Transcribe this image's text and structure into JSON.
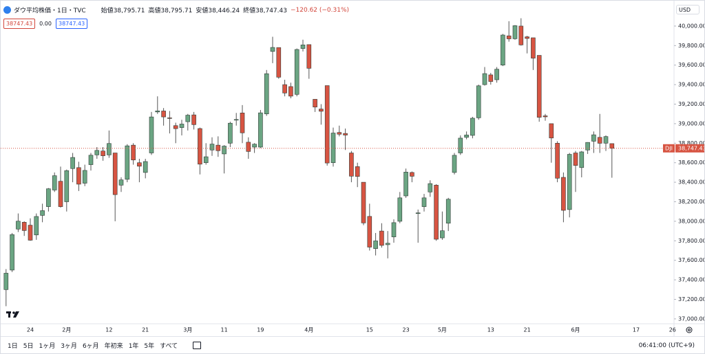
{
  "header": {
    "title": "ダウ平均株価・1日・TVC",
    "ohlc": [
      {
        "label": "始値",
        "value": "38,795.71"
      },
      {
        "label": "高値",
        "value": "38,795.71"
      },
      {
        "label": "安値",
        "value": "38,446.24"
      },
      {
        "label": "終値",
        "value": "38,747.43"
      }
    ],
    "change": "−120.62 (−0.31%)"
  },
  "boxes": [
    "38747.43",
    "0.00",
    "38747.43"
  ],
  "currency": "USD",
  "toolbar": {
    "ranges": [
      "1日",
      "5日",
      "1ヶ月",
      "3ヶ月",
      "6ヶ月",
      "年初来",
      "1年",
      "5年",
      "すべて"
    ],
    "time": "06:41:00 (UTC+9)"
  },
  "chart_data": {
    "type": "candlestick",
    "categories": [
      null,
      null,
      null,
      null,
      "24",
      null,
      null,
      null,
      null,
      null,
      "2月",
      null,
      null,
      null,
      null,
      null,
      null,
      "12",
      null,
      null,
      null,
      null,
      null,
      "21",
      null,
      null,
      null,
      null,
      null,
      null,
      "3月",
      null,
      null,
      null,
      null,
      null,
      "11",
      null,
      null,
      null,
      null,
      null,
      "19",
      null,
      null,
      null,
      null,
      null,
      null,
      null,
      "4月",
      null,
      null,
      null,
      null,
      null,
      null,
      null,
      null,
      null,
      "15",
      null,
      null,
      null,
      null,
      null,
      "23",
      null,
      null,
      null,
      null,
      null,
      "5月",
      null,
      null,
      null,
      null,
      null,
      null,
      null,
      "13",
      null,
      null,
      null,
      null,
      null,
      "21",
      null,
      null,
      null,
      null,
      null,
      null,
      null,
      "6月",
      null,
      null,
      null,
      null,
      null,
      null,
      null,
      null,
      null,
      "17",
      null,
      null,
      null,
      null,
      null,
      "26"
    ],
    "open": [
      37300,
      37500,
      37920,
      37990,
      37960,
      37860,
      38060,
      38150,
      38320,
      38410,
      38200,
      38540,
      38550,
      38390,
      38580,
      38680,
      38720,
      38680,
      38700,
      38370,
      38430,
      38780,
      38600,
      38500,
      38700,
      39120,
      39130,
      39060,
      38980,
      38960,
      39020,
      39090,
      38950,
      38600,
      38730,
      38780,
      38690,
      38800,
      39040,
      39110,
      38810,
      38760,
      38760,
      39100,
      39740,
      39780,
      39400,
      39380,
      39300,
      39770,
      39810,
      39250,
      39150,
      39390,
      38600,
      38910,
      38900,
      38700,
      38560,
      38400,
      38050,
      37720,
      37900,
      37760,
      37840,
      38000,
      38260,
      38500,
      38080,
      38150,
      38300,
      38370,
      37830,
      37980,
      38500,
      38700,
      38860,
      38880,
      39060,
      39400,
      39500,
      39450,
      39600,
      39900,
      39870,
      40000,
      39890,
      39880,
      39700,
      39080,
      39000,
      38800,
      38450,
      38120,
      38700,
      38550,
      38730,
      38820,
      38860,
      38800,
      38795.71,
      null,
      null,
      null,
      null,
      null,
      null,
      null,
      null,
      null,
      null
    ],
    "high": [
      37510,
      37880,
      38080,
      38000,
      38030,
      38080,
      38180,
      38340,
      38500,
      38560,
      38530,
      38700,
      38610,
      38580,
      38700,
      38760,
      38760,
      38930,
      38700,
      38450,
      38790,
      38800,
      38640,
      38640,
      39120,
      39280,
      39160,
      39130,
      39010,
      39040,
      39100,
      39120,
      38960,
      38800,
      38860,
      38870,
      38780,
      39020,
      39110,
      39190,
      38860,
      38800,
      39140,
      39550,
      39890,
      39780,
      39450,
      39420,
      39770,
      39860,
      39810,
      39250,
      39200,
      39390,
      38960,
      38980,
      38950,
      38720,
      38600,
      38400,
      38180,
      37880,
      37980,
      37900,
      38020,
      38300,
      38540,
      38510,
      38120,
      38280,
      38420,
      38380,
      38100,
      38240,
      38700,
      38880,
      38920,
      39070,
      39400,
      39580,
      39520,
      39580,
      39920,
      40050,
      40010,
      40080,
      39900,
      39880,
      39700,
      39100,
      39000,
      38820,
      38500,
      38700,
      38720,
      38720,
      38810,
      38920,
      39100,
      38880,
      38795.71,
      null,
      null,
      null,
      null,
      null,
      null,
      null,
      null,
      null,
      null
    ],
    "low": [
      37130,
      37480,
      37890,
      37850,
      37800,
      37810,
      37990,
      38100,
      38300,
      38140,
      38100,
      38400,
      38310,
      38360,
      38520,
      38640,
      38620,
      38650,
      38000,
      38300,
      38400,
      38580,
      38400,
      38440,
      38680,
      39100,
      38980,
      38900,
      38800,
      38880,
      38930,
      38940,
      38480,
      38580,
      38670,
      38660,
      38490,
      38760,
      38980,
      38800,
      38640,
      38700,
      38750,
      39080,
      39620,
      39460,
      39280,
      39260,
      39280,
      39740,
      39460,
      39120,
      38990,
      38570,
      38560,
      38870,
      38730,
      38400,
      38350,
      37960,
      37700,
      37650,
      37730,
      37620,
      37780,
      37980,
      38240,
      38400,
      37780,
      38100,
      38250,
      37800,
      37810,
      37900,
      38480,
      38680,
      38840,
      38850,
      39040,
      39390,
      39400,
      39420,
      39590,
      39840,
      39860,
      39800,
      39720,
      39550,
      39020,
      39030,
      38600,
      38400,
      37990,
      38040,
      38300,
      38450,
      38690,
      38700,
      38700,
      38720,
      38446.24,
      null,
      null,
      null,
      null,
      null,
      null,
      null,
      null,
      null,
      null
    ],
    "close": [
      37468,
      37863,
      38001,
      37905,
      37806,
      38049,
      38109,
      38333,
      38467,
      38150,
      38519,
      38654,
      38380,
      38521,
      38677,
      38726,
      38671,
      38797,
      38273,
      38424,
      38773,
      38628,
      38564,
      38612,
      39069,
      39131,
      39069,
      39053,
      38949,
      38996,
      39087,
      38990,
      38585,
      38661,
      38791,
      38723,
      38770,
      39005,
      39043,
      38906,
      38715,
      38790,
      39111,
      39512,
      39781,
      39476,
      39314,
      39282,
      39760,
      39807,
      39567,
      39170,
      39127,
      38597,
      38904,
      38892,
      38883,
      38462,
      38459,
      37983,
      37735,
      37799,
      37753,
      37775,
      37986,
      38240,
      38504,
      38461,
      38086,
      38240,
      38386,
      37816,
      37903,
      38226,
      38676,
      38852,
      38884,
      39056,
      39388,
      39513,
      39432,
      39558,
      39908,
      39869,
      40004,
      39807,
      39873,
      39671,
      39065,
      39070,
      38853,
      38441,
      38112,
      38686,
      38572,
      38711,
      38808,
      38886,
      38799,
      38868,
      38747.43,
      null,
      null,
      null,
      null,
      null,
      null,
      null,
      null,
      null,
      null
    ],
    "up_color": "#6ba583",
    "down_color": "#d75442",
    "ylim": [
      36950,
      40260
    ],
    "yticks": [
      {
        "value": 37000,
        "label": "37,000.00"
      },
      {
        "value": 37200,
        "label": "37,200.00"
      },
      {
        "value": 37400,
        "label": "37,400.00"
      },
      {
        "value": 37600,
        "label": "37,600.00"
      },
      {
        "value": 37800,
        "label": "37,800.00"
      },
      {
        "value": 38000,
        "label": "38,000.00"
      },
      {
        "value": 38200,
        "label": "38,200.00"
      },
      {
        "value": 38400,
        "label": "38,400.00"
      },
      {
        "value": 38600,
        "label": "38,600.00"
      },
      {
        "value": 38800,
        "label": "38,800.00"
      },
      {
        "value": 39000,
        "label": "39,000.00"
      },
      {
        "value": 39200,
        "label": "39,200.00"
      },
      {
        "value": 39400,
        "label": "39,400.00"
      },
      {
        "value": 39600,
        "label": "39,600.00"
      },
      {
        "value": 39800,
        "label": "39,800.00"
      },
      {
        "value": 40000,
        "label": "40,000.00"
      }
    ],
    "grid": false,
    "price_tag": {
      "symbol": "DJI",
      "label": "38,747.43"
    }
  }
}
